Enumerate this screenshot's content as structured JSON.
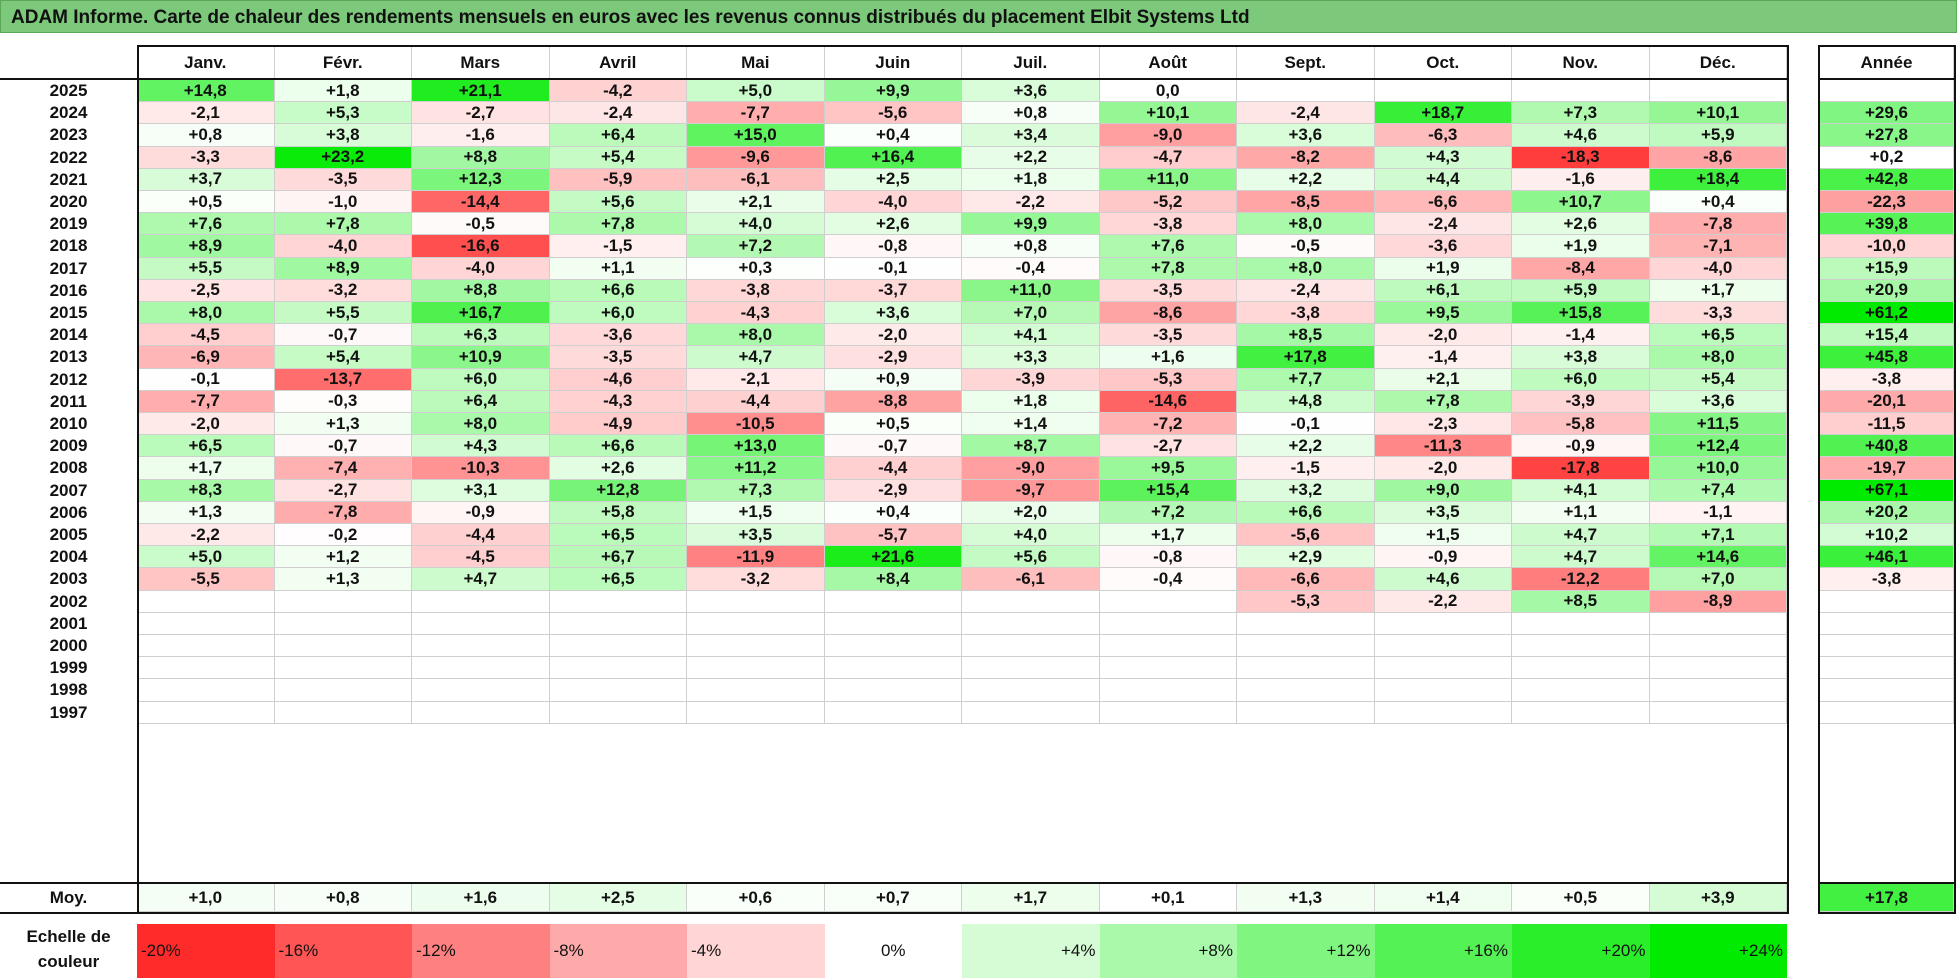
{
  "title": "ADAM Informe. Carte de chaleur des rendements mensuels en euros avec les revenus connus distribués du placement Elbit Systems Ltd",
  "chart_data": {
    "type": "heatmap",
    "title": "ADAM Informe. Carte de chaleur des rendements mensuels en euros avec les revenus connus distribués du placement Elbit Systems Ltd",
    "months": [
      "Janv.",
      "Févr.",
      "Mars",
      "Avril",
      "Mai",
      "Juin",
      "Juil.",
      "Août",
      "Sept.",
      "Oct.",
      "Nov.",
      "Déc."
    ],
    "year_header": "Année",
    "avg_label": "Moy.",
    "rows": [
      {
        "year": "2025",
        "values": [
          "+14,8",
          "+1,8",
          "+21,1",
          "-4,2",
          "+5,0",
          "+9,9",
          "+3,6",
          "0,0",
          "",
          "",
          "",
          ""
        ],
        "annual": ""
      },
      {
        "year": "2024",
        "values": [
          "-2,1",
          "+5,3",
          "-2,7",
          "-2,4",
          "-7,7",
          "-5,6",
          "+0,8",
          "+10,1",
          "-2,4",
          "+18,7",
          "+7,3",
          "+10,1"
        ],
        "annual": "+29,6"
      },
      {
        "year": "2023",
        "values": [
          "+0,8",
          "+3,8",
          "-1,6",
          "+6,4",
          "+15,0",
          "+0,4",
          "+3,4",
          "-9,0",
          "+3,6",
          "-6,3",
          "+4,6",
          "+5,9"
        ],
        "annual": "+27,8"
      },
      {
        "year": "2022",
        "values": [
          "-3,3",
          "+23,2",
          "+8,8",
          "+5,4",
          "-9,6",
          "+16,4",
          "+2,2",
          "-4,7",
          "-8,2",
          "+4,3",
          "-18,3",
          "-8,6"
        ],
        "annual": "+0,2"
      },
      {
        "year": "2021",
        "values": [
          "+3,7",
          "-3,5",
          "+12,3",
          "-5,9",
          "-6,1",
          "+2,5",
          "+1,8",
          "+11,0",
          "+2,2",
          "+4,4",
          "-1,6",
          "+18,4"
        ],
        "annual": "+42,8"
      },
      {
        "year": "2020",
        "values": [
          "+0,5",
          "-1,0",
          "-14,4",
          "+5,6",
          "+2,1",
          "-4,0",
          "-2,2",
          "-5,2",
          "-8,5",
          "-6,6",
          "+10,7",
          "+0,4"
        ],
        "annual": "-22,3"
      },
      {
        "year": "2019",
        "values": [
          "+7,6",
          "+7,8",
          "-0,5",
          "+7,8",
          "+4,0",
          "+2,6",
          "+9,9",
          "-3,8",
          "+8,0",
          "-2,4",
          "+2,6",
          "-7,8"
        ],
        "annual": "+39,8"
      },
      {
        "year": "2018",
        "values": [
          "+8,9",
          "-4,0",
          "-16,6",
          "-1,5",
          "+7,2",
          "-0,8",
          "+0,8",
          "+7,6",
          "-0,5",
          "-3,6",
          "+1,9",
          "-7,1"
        ],
        "annual": "-10,0"
      },
      {
        "year": "2017",
        "values": [
          "+5,5",
          "+8,9",
          "-4,0",
          "+1,1",
          "+0,3",
          "-0,1",
          "-0,4",
          "+7,8",
          "+8,0",
          "+1,9",
          "-8,4",
          "-4,0"
        ],
        "annual": "+15,9"
      },
      {
        "year": "2016",
        "values": [
          "-2,5",
          "-3,2",
          "+8,8",
          "+6,6",
          "-3,8",
          "-3,7",
          "+11,0",
          "-3,5",
          "-2,4",
          "+6,1",
          "+5,9",
          "+1,7"
        ],
        "annual": "+20,9"
      },
      {
        "year": "2015",
        "values": [
          "+8,0",
          "+5,5",
          "+16,7",
          "+6,0",
          "-4,3",
          "+3,6",
          "+7,0",
          "-8,6",
          "-3,8",
          "+9,5",
          "+15,8",
          "-3,3"
        ],
        "annual": "+61,2"
      },
      {
        "year": "2014",
        "values": [
          "-4,5",
          "-0,7",
          "+6,3",
          "-3,6",
          "+8,0",
          "-2,0",
          "+4,1",
          "-3,5",
          "+8,5",
          "-2,0",
          "-1,4",
          "+6,5"
        ],
        "annual": "+15,4"
      },
      {
        "year": "2013",
        "values": [
          "-6,9",
          "+5,4",
          "+10,9",
          "-3,5",
          "+4,7",
          "-2,9",
          "+3,3",
          "+1,6",
          "+17,8",
          "-1,4",
          "+3,8",
          "+8,0"
        ],
        "annual": "+45,8"
      },
      {
        "year": "2012",
        "values": [
          "-0,1",
          "-13,7",
          "+6,0",
          "-4,6",
          "-2,1",
          "+0,9",
          "-3,9",
          "-5,3",
          "+7,7",
          "+2,1",
          "+6,0",
          "+5,4"
        ],
        "annual": "-3,8"
      },
      {
        "year": "2011",
        "values": [
          "-7,7",
          "-0,3",
          "+6,4",
          "-4,3",
          "-4,4",
          "-8,8",
          "+1,8",
          "-14,6",
          "+4,8",
          "+7,8",
          "-3,9",
          "+3,6"
        ],
        "annual": "-20,1"
      },
      {
        "year": "2010",
        "values": [
          "-2,0",
          "+1,3",
          "+8,0",
          "-4,9",
          "-10,5",
          "+0,5",
          "+1,4",
          "-7,2",
          "-0,1",
          "-2,3",
          "-5,8",
          "+11,5"
        ],
        "annual": "-11,5"
      },
      {
        "year": "2009",
        "values": [
          "+6,5",
          "-0,7",
          "+4,3",
          "+6,6",
          "+13,0",
          "-0,7",
          "+8,7",
          "-2,7",
          "+2,2",
          "-11,3",
          "-0,9",
          "+12,4"
        ],
        "annual": "+40,8"
      },
      {
        "year": "2008",
        "values": [
          "+1,7",
          "-7,4",
          "-10,3",
          "+2,6",
          "+11,2",
          "-4,4",
          "-9,0",
          "+9,5",
          "-1,5",
          "-2,0",
          "-17,8",
          "+10,0"
        ],
        "annual": "-19,7"
      },
      {
        "year": "2007",
        "values": [
          "+8,3",
          "-2,7",
          "+3,1",
          "+12,8",
          "+7,3",
          "-2,9",
          "-9,7",
          "+15,4",
          "+3,2",
          "+9,0",
          "+4,1",
          "+7,4"
        ],
        "annual": "+67,1"
      },
      {
        "year": "2006",
        "values": [
          "+1,3",
          "-7,8",
          "-0,9",
          "+5,8",
          "+1,5",
          "+0,4",
          "+2,0",
          "+7,2",
          "+6,6",
          "+3,5",
          "+1,1",
          "-1,1"
        ],
        "annual": "+20,2"
      },
      {
        "year": "2005",
        "values": [
          "-2,2",
          "-0,2",
          "-4,4",
          "+6,5",
          "+3,5",
          "-5,7",
          "+4,0",
          "+1,7",
          "-5,6",
          "+1,5",
          "+4,7",
          "+7,1"
        ],
        "annual": "+10,2"
      },
      {
        "year": "2004",
        "values": [
          "+5,0",
          "+1,2",
          "-4,5",
          "+6,7",
          "-11,9",
          "+21,6",
          "+5,6",
          "-0,8",
          "+2,9",
          "-0,9",
          "+4,7",
          "+14,6"
        ],
        "annual": "+46,1"
      },
      {
        "year": "2003",
        "values": [
          "-5,5",
          "+1,3",
          "+4,7",
          "+6,5",
          "-3,2",
          "+8,4",
          "-6,1",
          "-0,4",
          "-6,6",
          "+4,6",
          "-12,2",
          "+7,0"
        ],
        "annual": "-3,8"
      },
      {
        "year": "2002",
        "values": [
          "",
          "",
          "",
          "",
          "",
          "",
          "",
          "",
          "-5,3",
          "-2,2",
          "+8,5",
          "-8,9"
        ],
        "annual": ""
      },
      {
        "year": "2001",
        "values": [
          "",
          "",
          "",
          "",
          "",
          "",
          "",
          "",
          "",
          "",
          "",
          ""
        ],
        "annual": ""
      },
      {
        "year": "2000",
        "values": [
          "",
          "",
          "",
          "",
          "",
          "",
          "",
          "",
          "",
          "",
          "",
          ""
        ],
        "annual": ""
      },
      {
        "year": "1999",
        "values": [
          "",
          "",
          "",
          "",
          "",
          "",
          "",
          "",
          "",
          "",
          "",
          ""
        ],
        "annual": ""
      },
      {
        "year": "1998",
        "values": [
          "",
          "",
          "",
          "",
          "",
          "",
          "",
          "",
          "",
          "",
          "",
          ""
        ],
        "annual": ""
      },
      {
        "year": "1997",
        "values": [
          "",
          "",
          "",
          "",
          "",
          "",
          "",
          "",
          "",
          "",
          "",
          ""
        ],
        "annual": ""
      }
    ],
    "averages": [
      "+1,0",
      "+0,8",
      "+1,6",
      "+2,5",
      "+0,6",
      "+0,7",
      "+1,7",
      "+0,1",
      "+1,3",
      "+1,4",
      "+0,5",
      "+3,9"
    ],
    "annual_average": "+17,8",
    "scale_label": "Echelle de couleur",
    "scale": [
      "-20%",
      "-16%",
      "-12%",
      "-8%",
      "-4%",
      "0%",
      "+4%",
      "+8%",
      "+12%",
      "+16%",
      "+20%",
      "+24%"
    ]
  },
  "colors": {
    "title_bg": "#7dc97b",
    "red": "#ff0000",
    "green": "#00ee00",
    "neutral": "#ffffff"
  }
}
